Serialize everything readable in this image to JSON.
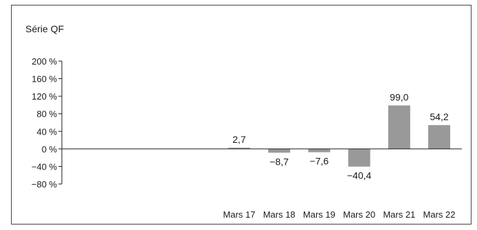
{
  "chart_data": {
    "type": "bar",
    "title": "Série QF",
    "categories": [
      "Mars 17",
      "Mars 18",
      "Mars 19",
      "Mars 20",
      "Mars 21",
      "Mars 22"
    ],
    "values": [
      2.7,
      -8.7,
      -7.6,
      -40.4,
      99.0,
      54.2
    ],
    "data_labels": [
      "2,7",
      "−8,7",
      "−7,6",
      "−40,4",
      "99,0",
      "54,2"
    ],
    "yticks": [
      200,
      160,
      120,
      80,
      40,
      0,
      -40,
      -80
    ],
    "ytick_labels": [
      "200 %",
      "160 %",
      "120 %",
      "80 %",
      "40 %",
      "0 %",
      "−40 %",
      "−80 %"
    ],
    "ylim": [
      -80,
      200
    ],
    "grid": false,
    "legend": "none",
    "bar_color": "#999999"
  }
}
